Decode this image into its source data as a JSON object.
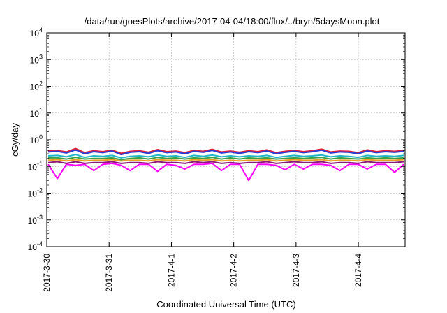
{
  "chart_data": {
    "type": "line",
    "title": "/data/run/goesPlots/archive/2017-04-04/18:00/flux/../bryn/5daysMoon.plot",
    "xlabel": "Coordinated Universal Time (UTC)",
    "ylabel": "cGy/day",
    "yscale": "log",
    "ylim": [
      0.0001,
      10000
    ],
    "y_ticks": [
      {
        "value": 0.0001,
        "base": "10",
        "exp": "-4"
      },
      {
        "value": 0.001,
        "base": "10",
        "exp": "-3"
      },
      {
        "value": 0.01,
        "base": "10",
        "exp": "-2"
      },
      {
        "value": 0.1,
        "base": "10",
        "exp": "-1"
      },
      {
        "value": 1,
        "base": "10",
        "exp": "0"
      },
      {
        "value": 10,
        "base": "10",
        "exp": "1"
      },
      {
        "value": 100,
        "base": "10",
        "exp": "2"
      },
      {
        "value": 1000,
        "base": "10",
        "exp": "3"
      },
      {
        "value": 10000,
        "base": "10",
        "exp": "4"
      }
    ],
    "xlim": [
      "2017-03-30 00:00",
      "2017-04-04 18:00"
    ],
    "x_tick_labels": [
      "2017-3-30",
      "2017-3-31",
      "2017-4-1",
      "2017-4-2",
      "2017-4-3",
      "2017-4-4"
    ],
    "grid": true,
    "legend": "none",
    "series": [
      {
        "color": "#2b3bd6",
        "baseline": 0.33,
        "values_note": "",
        "values": [
          0.35,
          0.37,
          0.32,
          0.42,
          0.3,
          0.36,
          0.33,
          0.38,
          0.28,
          0.34,
          0.36,
          0.31,
          0.39,
          0.33,
          0.35,
          0.3,
          0.37,
          0.34,
          0.4,
          0.32,
          0.35,
          0.31,
          0.36,
          0.33,
          0.38,
          0.3,
          0.34,
          0.37,
          0.33,
          0.36,
          0.41,
          0.32,
          0.35,
          0.34,
          0.3,
          0.38,
          0.33,
          0.36,
          0.34,
          0.37
        ]
      },
      {
        "color": "#e0203a",
        "baseline": 0.36,
        "values": [
          0.38,
          0.4,
          0.35,
          0.47,
          0.33,
          0.39,
          0.36,
          0.41,
          0.31,
          0.37,
          0.39,
          0.34,
          0.43,
          0.36,
          0.38,
          0.33,
          0.4,
          0.37,
          0.44,
          0.35,
          0.38,
          0.34,
          0.39,
          0.36,
          0.42,
          0.33,
          0.37,
          0.4,
          0.36,
          0.39,
          0.45,
          0.35,
          0.38,
          0.37,
          0.33,
          0.42,
          0.36,
          0.39,
          0.37,
          0.4
        ]
      },
      {
        "color": "#1fb6c9",
        "baseline": 0.24,
        "values": [
          0.25,
          0.26,
          0.23,
          0.28,
          0.22,
          0.25,
          0.24,
          0.26,
          0.21,
          0.24,
          0.25,
          0.23,
          0.27,
          0.24,
          0.25,
          0.22,
          0.26,
          0.24,
          0.27,
          0.23,
          0.25,
          0.23,
          0.25,
          0.24,
          0.26,
          0.22,
          0.24,
          0.26,
          0.24,
          0.25,
          0.27,
          0.23,
          0.25,
          0.24,
          0.22,
          0.26,
          0.24,
          0.25,
          0.24,
          0.26
        ]
      },
      {
        "color": "#3aa04a",
        "baseline": 0.2,
        "values": [
          0.21,
          0.21,
          0.19,
          0.22,
          0.19,
          0.2,
          0.2,
          0.21,
          0.18,
          0.2,
          0.21,
          0.19,
          0.22,
          0.2,
          0.21,
          0.19,
          0.21,
          0.2,
          0.22,
          0.19,
          0.21,
          0.19,
          0.21,
          0.2,
          0.21,
          0.19,
          0.2,
          0.21,
          0.2,
          0.21,
          0.22,
          0.19,
          0.21,
          0.2,
          0.19,
          0.21,
          0.2,
          0.21,
          0.2,
          0.21
        ]
      },
      {
        "color": "#e8a020",
        "baseline": 0.17,
        "values": [
          0.17,
          0.18,
          0.16,
          0.18,
          0.16,
          0.17,
          0.17,
          0.18,
          0.16,
          0.17,
          0.17,
          0.16,
          0.18,
          0.17,
          0.17,
          0.16,
          0.18,
          0.17,
          0.18,
          0.16,
          0.17,
          0.16,
          0.17,
          0.17,
          0.18,
          0.16,
          0.17,
          0.18,
          0.17,
          0.17,
          0.18,
          0.16,
          0.17,
          0.17,
          0.16,
          0.18,
          0.17,
          0.17,
          0.17,
          0.18
        ]
      },
      {
        "color": "#8a1a7a",
        "baseline": 0.14,
        "values": [
          0.14,
          0.15,
          0.13,
          0.15,
          0.13,
          0.14,
          0.14,
          0.15,
          0.13,
          0.14,
          0.14,
          0.13,
          0.15,
          0.14,
          0.14,
          0.13,
          0.15,
          0.14,
          0.15,
          0.13,
          0.14,
          0.13,
          0.14,
          0.14,
          0.15,
          0.13,
          0.14,
          0.15,
          0.14,
          0.14,
          0.15,
          0.13,
          0.14,
          0.14,
          0.13,
          0.15,
          0.14,
          0.14,
          0.14,
          0.15
        ]
      },
      {
        "color": "#ff00ff",
        "baseline": 0.12,
        "values": [
          0.12,
          0.035,
          0.12,
          0.11,
          0.12,
          0.07,
          0.12,
          0.13,
          0.11,
          0.07,
          0.12,
          0.12,
          0.065,
          0.12,
          0.11,
          0.08,
          0.12,
          0.12,
          0.13,
          0.07,
          0.12,
          0.12,
          0.03,
          0.12,
          0.12,
          0.11,
          0.075,
          0.12,
          0.08,
          0.12,
          0.12,
          0.11,
          0.07,
          0.12,
          0.12,
          0.08,
          0.12,
          0.12,
          0.06,
          0.12
        ]
      }
    ]
  }
}
